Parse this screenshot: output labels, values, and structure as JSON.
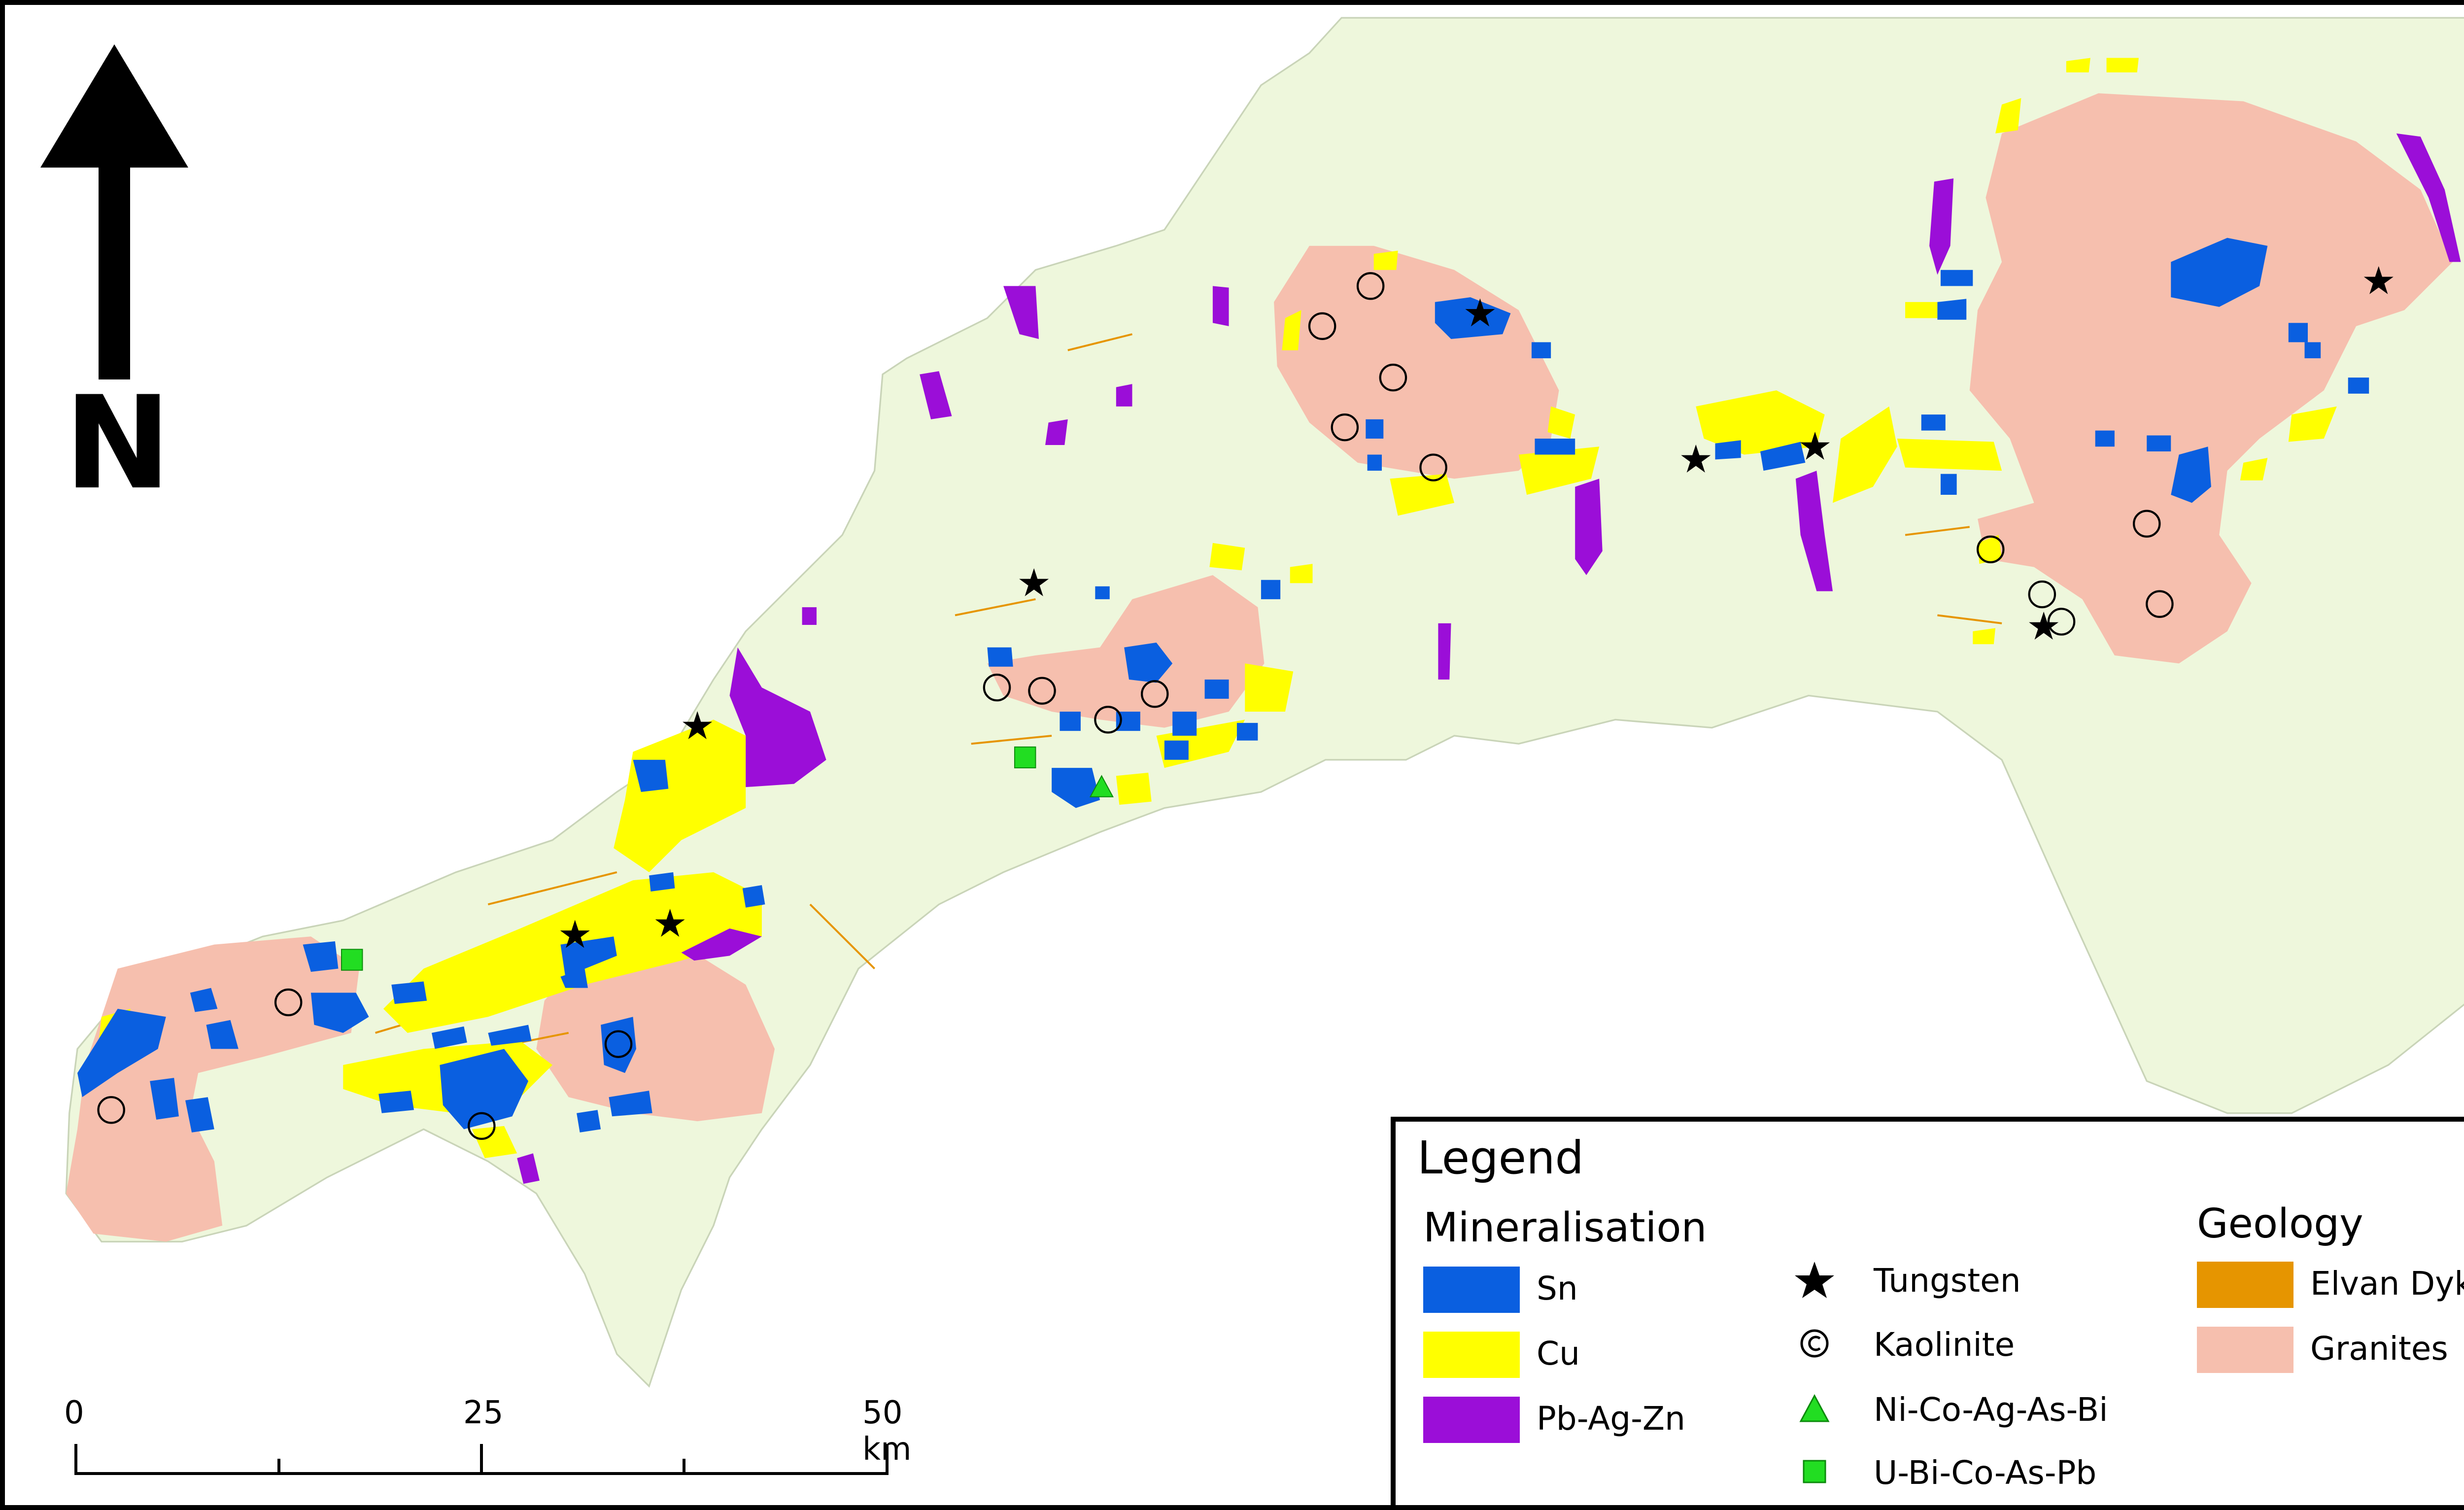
{
  "north_arrow": {
    "label": "N"
  },
  "scale_bar": {
    "ticks": [
      "0",
      "25",
      "50 km"
    ]
  },
  "legend": {
    "title": "Legend",
    "mineralisation": {
      "heading": "Mineralisation",
      "items": [
        {
          "label": "Sn",
          "color": "#0a5fe0"
        },
        {
          "label": "Cu",
          "color": "#ffff00"
        },
        {
          "label": "Pb-Ag-Zn",
          "color": "#9b0ed8"
        }
      ]
    },
    "symbols": [
      {
        "label": "Tungsten",
        "symbol": "star-icon"
      },
      {
        "label": "Kaolinite",
        "symbol": "copyright-circle-icon"
      },
      {
        "label": "Ni-Co-Ag-As-Bi",
        "symbol": "green-triangle-icon"
      },
      {
        "label": "U-Bi-Co-As-Pb",
        "symbol": "green-square-icon"
      }
    ],
    "geology": {
      "heading": "Geology",
      "items": [
        {
          "label": "Elvan Dykes",
          "color": "#e69500"
        },
        {
          "label": "Granites",
          "color": "#f6bfae"
        }
      ]
    }
  },
  "colors": {
    "sea": "#ffffff",
    "land": "#eef7dc",
    "sn": "#0a5fe0",
    "cu": "#ffff00",
    "pb_ag_zn": "#9b0ed8",
    "granite": "#f6bfae",
    "elvan": "#e69500",
    "ni_co": "#22dd22",
    "u_bi": "#22dd22"
  }
}
